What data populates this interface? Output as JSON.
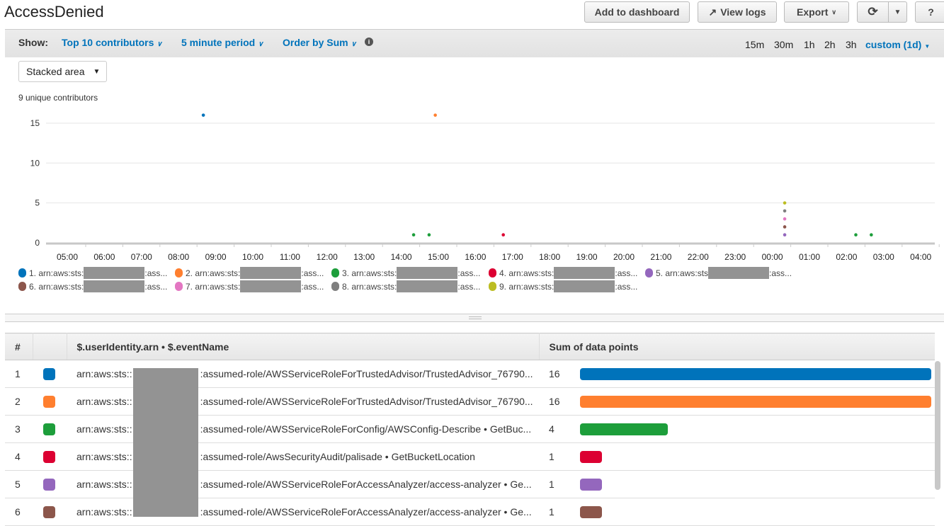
{
  "header": {
    "title": "AccessDenied",
    "add_to_dashboard": "Add to dashboard",
    "view_logs": "View logs",
    "export": "Export",
    "refresh_icon": "refresh-icon",
    "help": "?"
  },
  "toolbar": {
    "show_label": "Show:",
    "contributors": "Top 10 contributors",
    "period": "5 minute period",
    "order": "Order by Sum",
    "time_ranges": [
      "15m",
      "30m",
      "1h",
      "2h",
      "3h"
    ],
    "custom": "custom (1d)"
  },
  "chart_type_select": "Stacked area",
  "unique_contributors": "9 unique contributors",
  "colors": [
    "#0073bb",
    "#ff7f2f",
    "#1d9e3b",
    "#dc0032",
    "#9467bd",
    "#8c564b",
    "#e377c2",
    "#7f7f7f",
    "#bcbd22"
  ],
  "legend": [
    {
      "prefix": "1. arn:aws:sts:",
      "suffix": ":ass..."
    },
    {
      "prefix": "2. arn:aws:sts:",
      "suffix": ":ass..."
    },
    {
      "prefix": "3. arn:aws:sts:",
      "suffix": ":ass..."
    },
    {
      "prefix": "4. arn:aws:sts:",
      "suffix": ":ass..."
    },
    {
      "prefix": "5. arn:aws:sts",
      "suffix": ":ass..."
    },
    {
      "prefix": "6. arn:aws:sts:",
      "suffix": ":ass..."
    },
    {
      "prefix": "7. arn:aws:sts:",
      "suffix": ":ass..."
    },
    {
      "prefix": "8. arn:aws:sts:",
      "suffix": ":ass..."
    },
    {
      "prefix": "9. arn:aws:sts:",
      "suffix": ":ass..."
    }
  ],
  "chart_data": {
    "type": "area",
    "stacked": true,
    "x_ticks": [
      "05:00",
      "06:00",
      "07:00",
      "08:00",
      "09:00",
      "10:00",
      "11:00",
      "12:00",
      "13:00",
      "14:00",
      "15:00",
      "16:00",
      "17:00",
      "18:00",
      "19:00",
      "20:00",
      "21:00",
      "22:00",
      "23:00",
      "00:00",
      "01:00",
      "02:00",
      "03:00",
      "04:00"
    ],
    "y_ticks": [
      0,
      5,
      10,
      15
    ],
    "ylim": [
      0,
      17
    ],
    "grid": true,
    "series": [
      {
        "points": [
          [
            "08:40",
            16
          ]
        ]
      },
      {
        "points": [
          [
            "14:55",
            16
          ]
        ]
      },
      {
        "points": [
          [
            "14:20",
            1
          ],
          [
            "14:45",
            1
          ],
          [
            "02:15",
            1
          ],
          [
            "02:40",
            1
          ]
        ]
      },
      {
        "points": [
          [
            "16:45",
            1
          ]
        ]
      },
      {
        "points": [
          [
            "00:20",
            1
          ]
        ]
      },
      {
        "points": [
          [
            "00:20",
            1
          ]
        ]
      },
      {
        "points": [
          [
            "00:20",
            1
          ]
        ]
      },
      {
        "points": [
          [
            "00:20",
            1
          ]
        ]
      },
      {
        "points": [
          [
            "00:20",
            1
          ]
        ]
      }
    ]
  },
  "table": {
    "headers": [
      "#",
      "",
      "$.userIdentity.arn • $.eventName",
      "Sum of data points"
    ],
    "rows": [
      {
        "n": "1",
        "prefix": "arn:aws:sts::",
        "suffix": ":assumed-role/AWSServiceRoleForTrustedAdvisor/TrustedAdvisor_76790...",
        "sum": 16
      },
      {
        "n": "2",
        "prefix": "arn:aws:sts::",
        "suffix": ":assumed-role/AWSServiceRoleForTrustedAdvisor/TrustedAdvisor_76790...",
        "sum": 16
      },
      {
        "n": "3",
        "prefix": "arn:aws:sts::",
        "suffix": ":assumed-role/AWSServiceRoleForConfig/AWSConfig-Describe • GetBuc...",
        "sum": 4
      },
      {
        "n": "4",
        "prefix": "arn:aws:sts::",
        "suffix": ":assumed-role/AwsSecurityAudit/palisade • GetBucketLocation",
        "sum": 1
      },
      {
        "n": "5",
        "prefix": "arn:aws:sts::",
        "suffix": ":assumed-role/AWSServiceRoleForAccessAnalyzer/access-analyzer • Ge...",
        "sum": 1
      },
      {
        "n": "6",
        "prefix": "arn:aws:sts::",
        "suffix": ":assumed-role/AWSServiceRoleForAccessAnalyzer/access-analyzer • Ge...",
        "sum": 1
      }
    ]
  }
}
